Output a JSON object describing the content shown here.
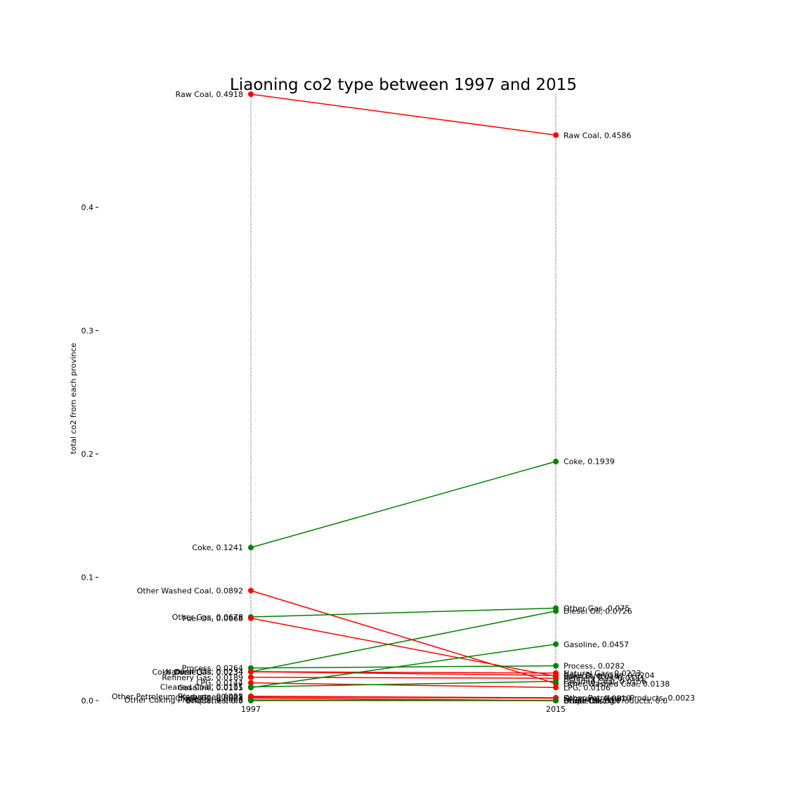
{
  "chart_data": {
    "type": "line",
    "title": "Liaoning co2 type between 1997 and 2015",
    "xlabel": "",
    "ylabel": "total co2 from each province",
    "x": [
      "1997",
      "2015"
    ],
    "ylim": [
      0,
      0.4918
    ],
    "yticks": [
      "0.0",
      "0.1",
      "0.2",
      "0.3",
      "0.4"
    ],
    "colors": {
      "increase": "#008000",
      "decrease": "#ff0000"
    },
    "series": [
      {
        "name": "Raw Coal",
        "values": [
          0.4918,
          0.4586
        ]
      },
      {
        "name": "Coke",
        "values": [
          0.1241,
          0.1939
        ]
      },
      {
        "name": "Other Washed Coal",
        "values": [
          0.0892,
          0.0138
        ]
      },
      {
        "name": "Other Gas",
        "values": [
          0.0678,
          0.075
        ]
      },
      {
        "name": "Fuel Oil",
        "values": [
          0.0668,
          0.0197
        ]
      },
      {
        "name": "Process",
        "values": [
          0.0264,
          0.0282
        ]
      },
      {
        "name": "Diesel Oil",
        "values": [
          0.0234,
          0.0726
        ]
      },
      {
        "name": "Natural Gas",
        "values": [
          0.0234,
          0.0223
        ]
      },
      {
        "name": "Coke Oven Gas",
        "values": [
          0.0234,
          0.0204
        ]
      },
      {
        "name": "Refinery Gas",
        "values": [
          0.0189,
          0.0181
        ]
      },
      {
        "name": "LPG",
        "values": [
          0.0144,
          0.0106
        ]
      },
      {
        "name": "Cleaned Coal",
        "values": [
          0.0111,
          0.0156
        ]
      },
      {
        "name": "Gasoline",
        "values": [
          0.0105,
          0.0457
        ]
      },
      {
        "name": "Other Petroleum Products",
        "values": [
          0.0035,
          0.0023
        ]
      },
      {
        "name": "Kerosene",
        "values": [
          0.003,
          0.0019
        ]
      },
      {
        "name": "Crude Oil",
        "values": [
          0.0021,
          0.0
        ]
      },
      {
        "name": "Other Coking Products",
        "values": [
          0.0005,
          0.0
        ]
      },
      {
        "name": "Briquettes",
        "values": [
          0.0,
          0.0
        ]
      }
    ],
    "labels_left": [
      "Raw Coal, 0.4918",
      "Coke, 0.1241",
      "Other Washed Coal, 0.0892",
      "Other Gas, 0.0678",
      "Fuel Oil, 0.0668",
      "Process, 0.0264",
      "Diesel Oil, 0.0234",
      "Natural Gas, 0.0234",
      "Coke Oven Gas, 0.0234",
      "Refinery Gas, 0.0189",
      "LPG, 0.0144",
      "Cleaned Coal, 0.0111",
      "Gasoline, 0.0105",
      "Other Petroleum Products, 0.0035",
      "Kerosene, 0.003",
      "Crude Oil, 0.0021",
      "Other Coking Products, 0.0005",
      "Briquettes, 0.0"
    ],
    "labels_right": [
      "Raw Coal, 0.4586",
      "Coke, 0.1939",
      "Other Washed Coal, 0.0138",
      "Other Gas, 0.075",
      "Fuel Oil, 0.0197",
      "Process, 0.0282",
      "Diesel Oil, 0.0726",
      "Natural Gas, 0.0223",
      "Coke Oven Gas, 0.0204",
      "Refinery Gas, 0.0181",
      "LPG, 0.0106",
      "Cleaned Coal, 0.0156",
      "Gasoline, 0.0457",
      "Other Petroleum Products, 0.0023",
      "Kerosene, 0.0019",
      "Crude Oil, 0.0",
      "Other Coking Products, 0.0",
      "Briquettes, 0.0"
    ]
  }
}
